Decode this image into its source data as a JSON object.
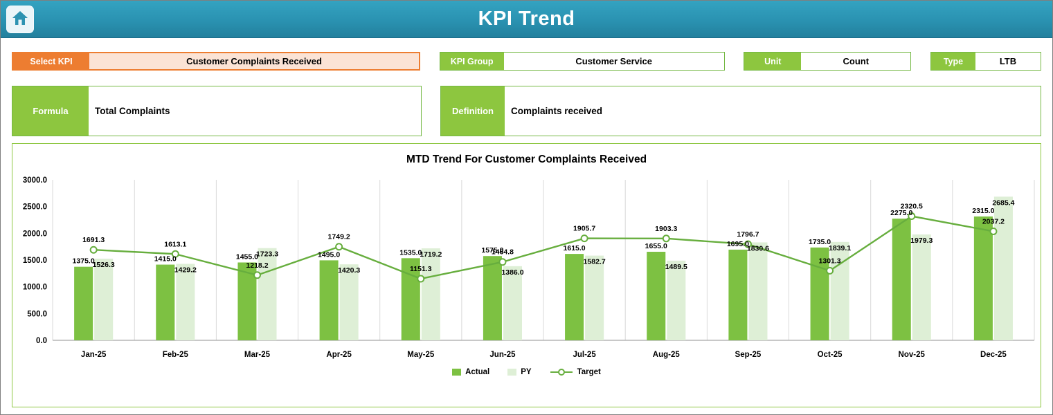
{
  "header": {
    "title": "KPI Trend"
  },
  "icons": {
    "home": "home-icon"
  },
  "selectors": {
    "select_kpi": {
      "label": "Select KPI",
      "value": "Customer Complaints Received"
    },
    "kpi_group": {
      "label": "KPI Group",
      "value": "Customer Service"
    },
    "unit": {
      "label": "Unit",
      "value": "Count"
    },
    "type": {
      "label": "Type",
      "value": "LTB"
    }
  },
  "formula": {
    "label": "Formula",
    "value": "Total Complaints"
  },
  "definition": {
    "label": "Definition",
    "value": "Complaints received"
  },
  "colors": {
    "header_teal": "#2A92B1",
    "accent_orange": "#ED7D31",
    "select_fill": "#FBE3D5",
    "green_label": "#8DC63F",
    "green_border": "#74B843",
    "actual_green": "#7DC142",
    "py_green": "#DEEFD6",
    "target_green": "#67AE3E"
  },
  "chart_data": {
    "type": "bar",
    "subtype": "grouped bars with target line overlay",
    "title": "MTD Trend For Customer Complaints Received",
    "categories": [
      "Jan-25",
      "Feb-25",
      "Mar-25",
      "Apr-25",
      "May-25",
      "Jun-25",
      "Jul-25",
      "Aug-25",
      "Sep-25",
      "Oct-25",
      "Nov-25",
      "Dec-25"
    ],
    "series": [
      {
        "name": "Actual",
        "type": "bar",
        "color": "#7DC142",
        "values": [
          1375.0,
          1415.0,
          1455.0,
          1495.0,
          1535.0,
          1575.0,
          1615.0,
          1655.0,
          1695.0,
          1735.0,
          2275.0,
          2315.0
        ]
      },
      {
        "name": "PY",
        "type": "bar",
        "color": "#DEEFD6",
        "values": [
          1526.3,
          1429.2,
          1723.3,
          1420.3,
          1719.2,
          1386.0,
          1582.7,
          1489.5,
          1830.6,
          1839.1,
          1979.3,
          2685.4
        ]
      },
      {
        "name": "Target",
        "type": "line",
        "color": "#67AE3E",
        "values": [
          1691.3,
          1613.1,
          1218.2,
          1749.2,
          1151.3,
          1464.8,
          1905.7,
          1903.3,
          1796.7,
          1301.3,
          2320.5,
          2037.2
        ]
      }
    ],
    "xlabel": "",
    "ylabel": "",
    "ylim": [
      0,
      3000
    ],
    "ytick_step": 500,
    "ytick_labels": [
      "0.0",
      "500.0",
      "1000.0",
      "1500.0",
      "2000.0",
      "2500.0",
      "3000.0"
    ],
    "data_label_format": "one_decimal",
    "legend_position": "bottom",
    "grid": "vertical",
    "grid_color": "#D9D9D9",
    "axis_color": "#A6A6A6"
  }
}
